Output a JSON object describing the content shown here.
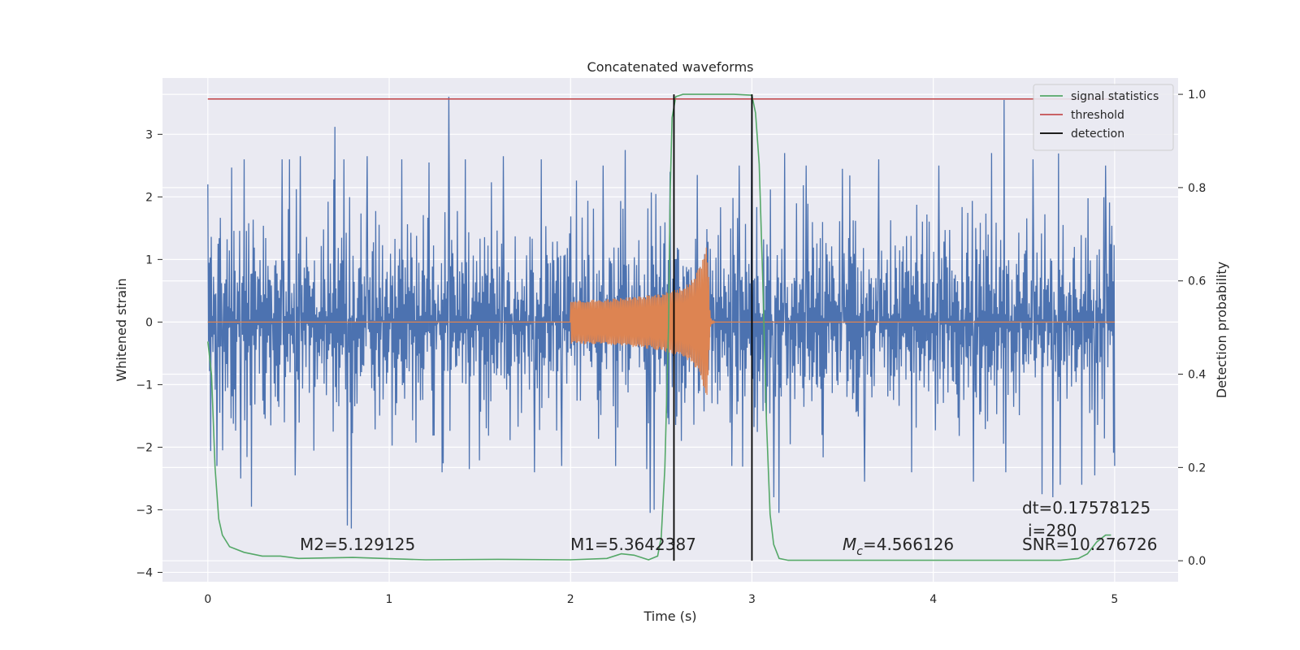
{
  "chart_data": {
    "type": "line",
    "title": "Concatenated waveforms",
    "xlabel": "Time (s)",
    "ylabel": "Whitened strain",
    "y2label": "Detection probability",
    "xlim": [
      -0.25,
      5.35
    ],
    "ylim": [
      -4.15,
      3.9
    ],
    "y2lim": [
      -0.045,
      1.035
    ],
    "xticks": [
      0,
      1,
      2,
      3,
      4,
      5
    ],
    "yticks": [
      -4,
      -3,
      -2,
      -1,
      0,
      1,
      2,
      3
    ],
    "y2ticks": [
      0.0,
      0.2,
      0.4,
      0.6,
      0.8,
      1.0
    ],
    "grid": true,
    "legend_position": "top-right",
    "series": [
      {
        "name": "",
        "axis": "left",
        "color": "#4c72b0",
        "kind": "noise",
        "x_range": [
          0,
          5
        ],
        "spikes": [
          [
            0.0,
            2.2
          ],
          [
            0.05,
            -2.3
          ],
          [
            0.08,
            -2.05
          ],
          [
            0.18,
            -2.5
          ],
          [
            0.2,
            2.6
          ],
          [
            0.24,
            -2.95
          ],
          [
            0.41,
            2.6
          ],
          [
            0.45,
            2.6
          ],
          [
            0.48,
            -2.45
          ],
          [
            0.51,
            2.65
          ],
          [
            0.7,
            3.12
          ],
          [
            0.75,
            2.6
          ],
          [
            0.77,
            -3.25
          ],
          [
            0.79,
            -3.3
          ],
          [
            0.88,
            2.65
          ],
          [
            1.07,
            2.6
          ],
          [
            1.22,
            2.55
          ],
          [
            1.29,
            -2.4
          ],
          [
            1.33,
            3.6
          ],
          [
            1.42,
            2.6
          ],
          [
            1.44,
            -2.35
          ],
          [
            1.63,
            2.65
          ],
          [
            1.8,
            -2.4
          ],
          [
            1.84,
            2.6
          ],
          [
            1.95,
            -2.3
          ],
          [
            2.18,
            2.5
          ],
          [
            2.3,
            2.75
          ],
          [
            2.42,
            -2.35
          ],
          [
            2.44,
            -3.05
          ],
          [
            2.46,
            -3.0
          ],
          [
            2.55,
            2.4
          ],
          [
            2.7,
            2.35
          ],
          [
            2.89,
            -2.3
          ],
          [
            2.93,
            2.5
          ],
          [
            3.0,
            3.55
          ],
          [
            3.12,
            -2.8
          ],
          [
            3.15,
            -3.05
          ],
          [
            3.18,
            2.7
          ],
          [
            3.3,
            2.5
          ],
          [
            3.5,
            2.45
          ],
          [
            3.62,
            -2.55
          ],
          [
            3.7,
            2.6
          ],
          [
            3.88,
            -2.4
          ],
          [
            4.03,
            2.5
          ],
          [
            4.22,
            -2.55
          ],
          [
            4.32,
            2.7
          ],
          [
            4.39,
            3.55
          ],
          [
            4.4,
            -2.4
          ],
          [
            4.55,
            2.6
          ],
          [
            4.6,
            -2.75
          ],
          [
            4.66,
            -2.8
          ],
          [
            4.7,
            -2.6
          ],
          [
            4.82,
            -2.6
          ],
          [
            4.89,
            -2.45
          ],
          [
            4.95,
            2.5
          ],
          [
            5.0,
            1.0
          ],
          [
            5.0,
            -2.3
          ]
        ]
      },
      {
        "name": "",
        "axis": "left",
        "color": "#dd8452",
        "kind": "chirp",
        "points": [
          [
            0.0,
            0.0
          ],
          [
            2.0,
            0.0
          ],
          [
            2.0,
            0.35
          ],
          [
            2.2,
            0.37
          ],
          [
            2.4,
            0.42
          ],
          [
            2.5,
            0.46
          ],
          [
            2.6,
            0.55
          ],
          [
            2.68,
            0.7
          ],
          [
            2.72,
            0.95
          ],
          [
            2.74,
            1.22
          ],
          [
            2.75,
            1.3
          ],
          [
            2.76,
            0.9
          ],
          [
            2.77,
            0.1
          ],
          [
            2.78,
            0.03
          ],
          [
            2.8,
            0.0
          ],
          [
            5.0,
            0.0
          ]
        ]
      },
      {
        "name": "signal statistics",
        "axis": "right",
        "color": "#55a868",
        "kind": "line",
        "points": [
          [
            0.0,
            0.47
          ],
          [
            0.02,
            0.4
          ],
          [
            0.04,
            0.2
          ],
          [
            0.06,
            0.09
          ],
          [
            0.08,
            0.055
          ],
          [
            0.12,
            0.03
          ],
          [
            0.2,
            0.018
          ],
          [
            0.3,
            0.01
          ],
          [
            0.4,
            0.01
          ],
          [
            0.5,
            0.005
          ],
          [
            0.8,
            0.007
          ],
          [
            1.2,
            0.002
          ],
          [
            1.6,
            0.003
          ],
          [
            2.0,
            0.002
          ],
          [
            2.2,
            0.005
          ],
          [
            2.28,
            0.015
          ],
          [
            2.35,
            0.012
          ],
          [
            2.43,
            0.002
          ],
          [
            2.48,
            0.01
          ],
          [
            2.5,
            0.05
          ],
          [
            2.52,
            0.2
          ],
          [
            2.54,
            0.5
          ],
          [
            2.55,
            0.8
          ],
          [
            2.56,
            0.95
          ],
          [
            2.58,
            0.995
          ],
          [
            2.62,
            1.0
          ],
          [
            2.9,
            1.0
          ],
          [
            3.0,
            0.998
          ],
          [
            3.02,
            0.96
          ],
          [
            3.04,
            0.85
          ],
          [
            3.06,
            0.6
          ],
          [
            3.08,
            0.3
          ],
          [
            3.1,
            0.1
          ],
          [
            3.12,
            0.035
          ],
          [
            3.15,
            0.005
          ],
          [
            3.2,
            0.001
          ],
          [
            4.7,
            0.001
          ],
          [
            4.8,
            0.005
          ],
          [
            4.85,
            0.015
          ],
          [
            4.9,
            0.04
          ],
          [
            4.95,
            0.055
          ],
          [
            4.98,
            0.055
          ]
        ]
      },
      {
        "name": "threshold",
        "axis": "right",
        "color": "#c44e52",
        "kind": "hline",
        "points": [
          [
            0.0,
            0.99
          ],
          [
            5.0,
            0.99
          ]
        ]
      },
      {
        "name": "detection",
        "axis": "right",
        "color": "#000000",
        "kind": "vlines",
        "x": [
          2.57,
          3.0
        ],
        "y_range": [
          0.0,
          1.0
        ]
      }
    ],
    "annotations": {
      "m2": "M2=5.129125",
      "m1": "M1=5.3642387",
      "mc_symbol": "M",
      "mc_sub": "c",
      "mc_value": "=4.566126",
      "dt": "dt=0.17578125",
      "i": "i=280",
      "snr": "SNR=10.276726"
    }
  },
  "colors": {
    "axes_bg": "#eaeaf2",
    "grid": "#ffffff",
    "legend_bg": "#eaeaf2"
  }
}
